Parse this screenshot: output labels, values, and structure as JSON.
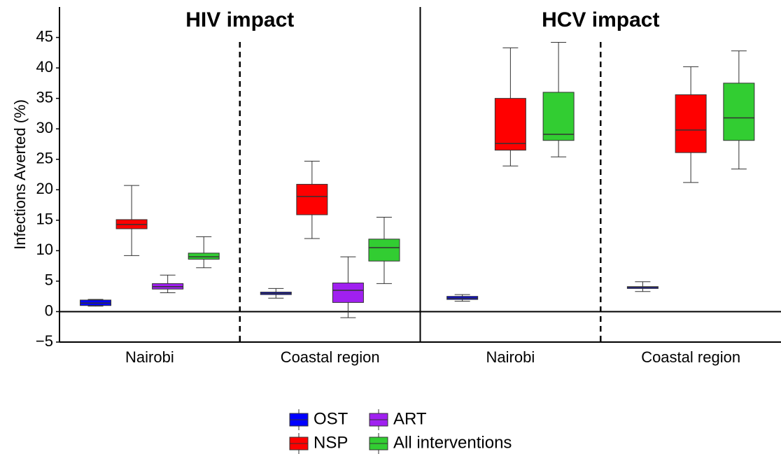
{
  "chart_data": [
    {
      "type": "box",
      "title": "HIV impact",
      "y_label": "Infections Averted (%)",
      "categories": [
        "Nairobi",
        "Coastal region"
      ],
      "ylim": [
        -5,
        50
      ],
      "yticks": [
        {
          "value": -5,
          "label": "−5"
        },
        0,
        5,
        10,
        15,
        20,
        25,
        30,
        35,
        40,
        45
      ],
      "series": [
        {
          "name": "OST",
          "color": "#0000ff",
          "values": [
            {
              "low": 0.9,
              "q1": 1.0,
              "median": 1.4,
              "q3": 1.9,
              "high": 2.0
            },
            {
              "low": 2.2,
              "q1": 2.8,
              "median": 3.0,
              "q3": 3.2,
              "high": 3.8
            }
          ]
        },
        {
          "name": "NSP",
          "color": "#ff0000",
          "values": [
            {
              "low": 9.2,
              "q1": 13.6,
              "median": 14.3,
              "q3": 15.1,
              "high": 20.7
            },
            {
              "low": 12.0,
              "q1": 15.9,
              "median": 18.9,
              "q3": 20.9,
              "high": 24.7
            }
          ]
        },
        {
          "name": "ART",
          "color": "#a020f0",
          "values": [
            {
              "low": 3.1,
              "q1": 3.7,
              "median": 4.1,
              "q3": 4.6,
              "high": 6.0
            },
            {
              "low": -1.0,
              "q1": 1.5,
              "median": 3.5,
              "q3": 4.7,
              "high": 9.0
            }
          ]
        },
        {
          "name": "All interventions",
          "color": "#32cd32",
          "values": [
            {
              "low": 7.2,
              "q1": 8.6,
              "median": 9.0,
              "q3": 9.6,
              "high": 12.3
            },
            {
              "low": 4.6,
              "q1": 8.3,
              "median": 10.5,
              "q3": 11.9,
              "high": 15.5
            }
          ]
        }
      ]
    },
    {
      "type": "box",
      "title": "HCV impact",
      "categories": [
        "Nairobi",
        "Coastal region"
      ],
      "ylim": [
        -5,
        50
      ],
      "series": [
        {
          "color": "#0000ff",
          "values": [
            {
              "low": 1.7,
              "q1": 2.0,
              "median": 2.2,
              "q3": 2.5,
              "high": 2.8
            },
            {
              "low": 3.3,
              "q1": 3.8,
              "median": 4.0,
              "q3": 4.1,
              "high": 4.9
            }
          ]
        },
        {
          "color": "#ff0000",
          "values": [
            {
              "low": 23.9,
              "q1": 26.5,
              "median": 27.6,
              "q3": 35.0,
              "high": 43.3
            },
            {
              "low": 21.2,
              "q1": 26.1,
              "median": 29.8,
              "q3": 35.6,
              "high": 40.2
            }
          ]
        },
        {
          "color": "#a020f0",
          "values": [
            null,
            null
          ]
        },
        {
          "color": "#32cd32",
          "values": [
            {
              "low": 25.4,
              "q1": 28.1,
              "median": 29.1,
              "q3": 36.0,
              "high": 44.2
            },
            {
              "low": 23.4,
              "q1": 28.1,
              "median": 31.8,
              "q3": 37.5,
              "high": 42.8
            }
          ]
        }
      ]
    }
  ]
}
